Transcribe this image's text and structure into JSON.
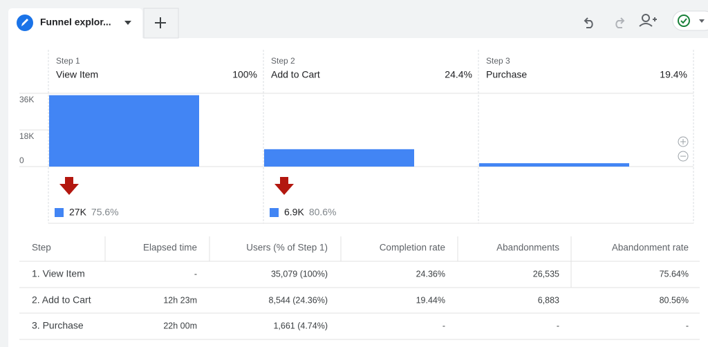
{
  "tab": {
    "title": "Funnel explor..."
  },
  "chart_data": {
    "type": "bar",
    "step_labels": [
      "Step 1",
      "Step 2",
      "Step 3"
    ],
    "categories": [
      "View Item",
      "Add to Cart",
      "Purchase"
    ],
    "category_percents": [
      "100%",
      "24.4%",
      "19.4%"
    ],
    "values": [
      35079,
      8544,
      1661
    ],
    "color": "#4285f4",
    "ylim": [
      0,
      36000
    ],
    "yticks": [
      {
        "value": 0,
        "label": "0"
      },
      {
        "value": 18000,
        "label": "18K"
      },
      {
        "value": 36000,
        "label": "36K"
      }
    ],
    "dropoffs": [
      {
        "count": "27K",
        "rate": "75.6%"
      },
      {
        "count": "6.9K",
        "rate": "80.6%"
      }
    ],
    "dropoff_color": "#b3170f"
  },
  "table": {
    "headers": [
      "Step",
      "Elapsed time",
      "Users (% of Step 1)",
      "Completion rate",
      "Abandonments",
      "Abandonment rate"
    ],
    "rows": [
      [
        "1. View Item",
        "-",
        "35,079 (100%)",
        "24.36%",
        "26,535",
        "75.64%"
      ],
      [
        "2. Add to Cart",
        "12h 23m",
        "8,544 (24.36%)",
        "19.44%",
        "6,883",
        "80.56%"
      ],
      [
        "3. Purchase",
        "22h 00m",
        "1,661 (4.74%)",
        "-",
        "-",
        "-"
      ]
    ]
  }
}
